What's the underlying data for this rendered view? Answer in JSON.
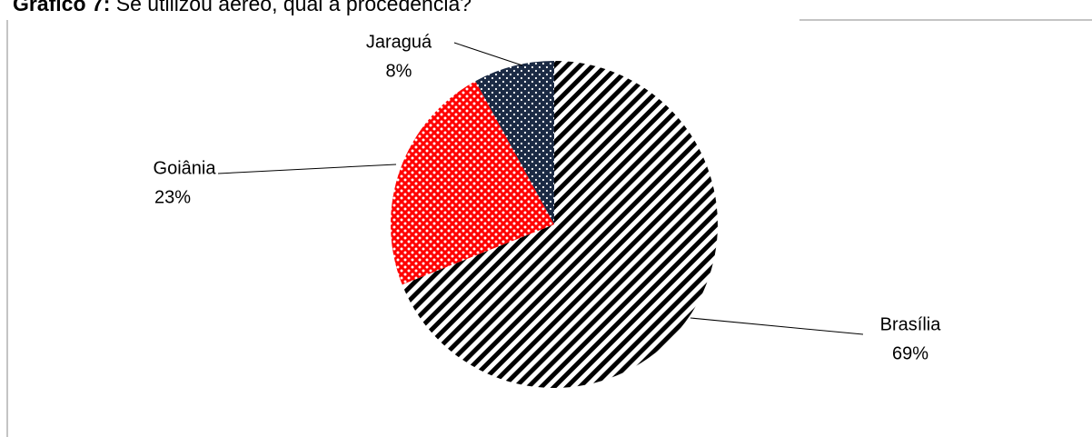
{
  "chart_data": {
    "type": "pie",
    "title_label": "Gráfico 7:",
    "title": "Se utilizou aéreo, qual a procedência?",
    "categories": [
      "Brasília",
      "Goiânia",
      "Jaraguá"
    ],
    "values": [
      69,
      23,
      8
    ],
    "value_labels": [
      "69%",
      "23%",
      "8%"
    ],
    "colors": [
      "#000000",
      "#ff0000",
      "#1b2a44"
    ]
  }
}
